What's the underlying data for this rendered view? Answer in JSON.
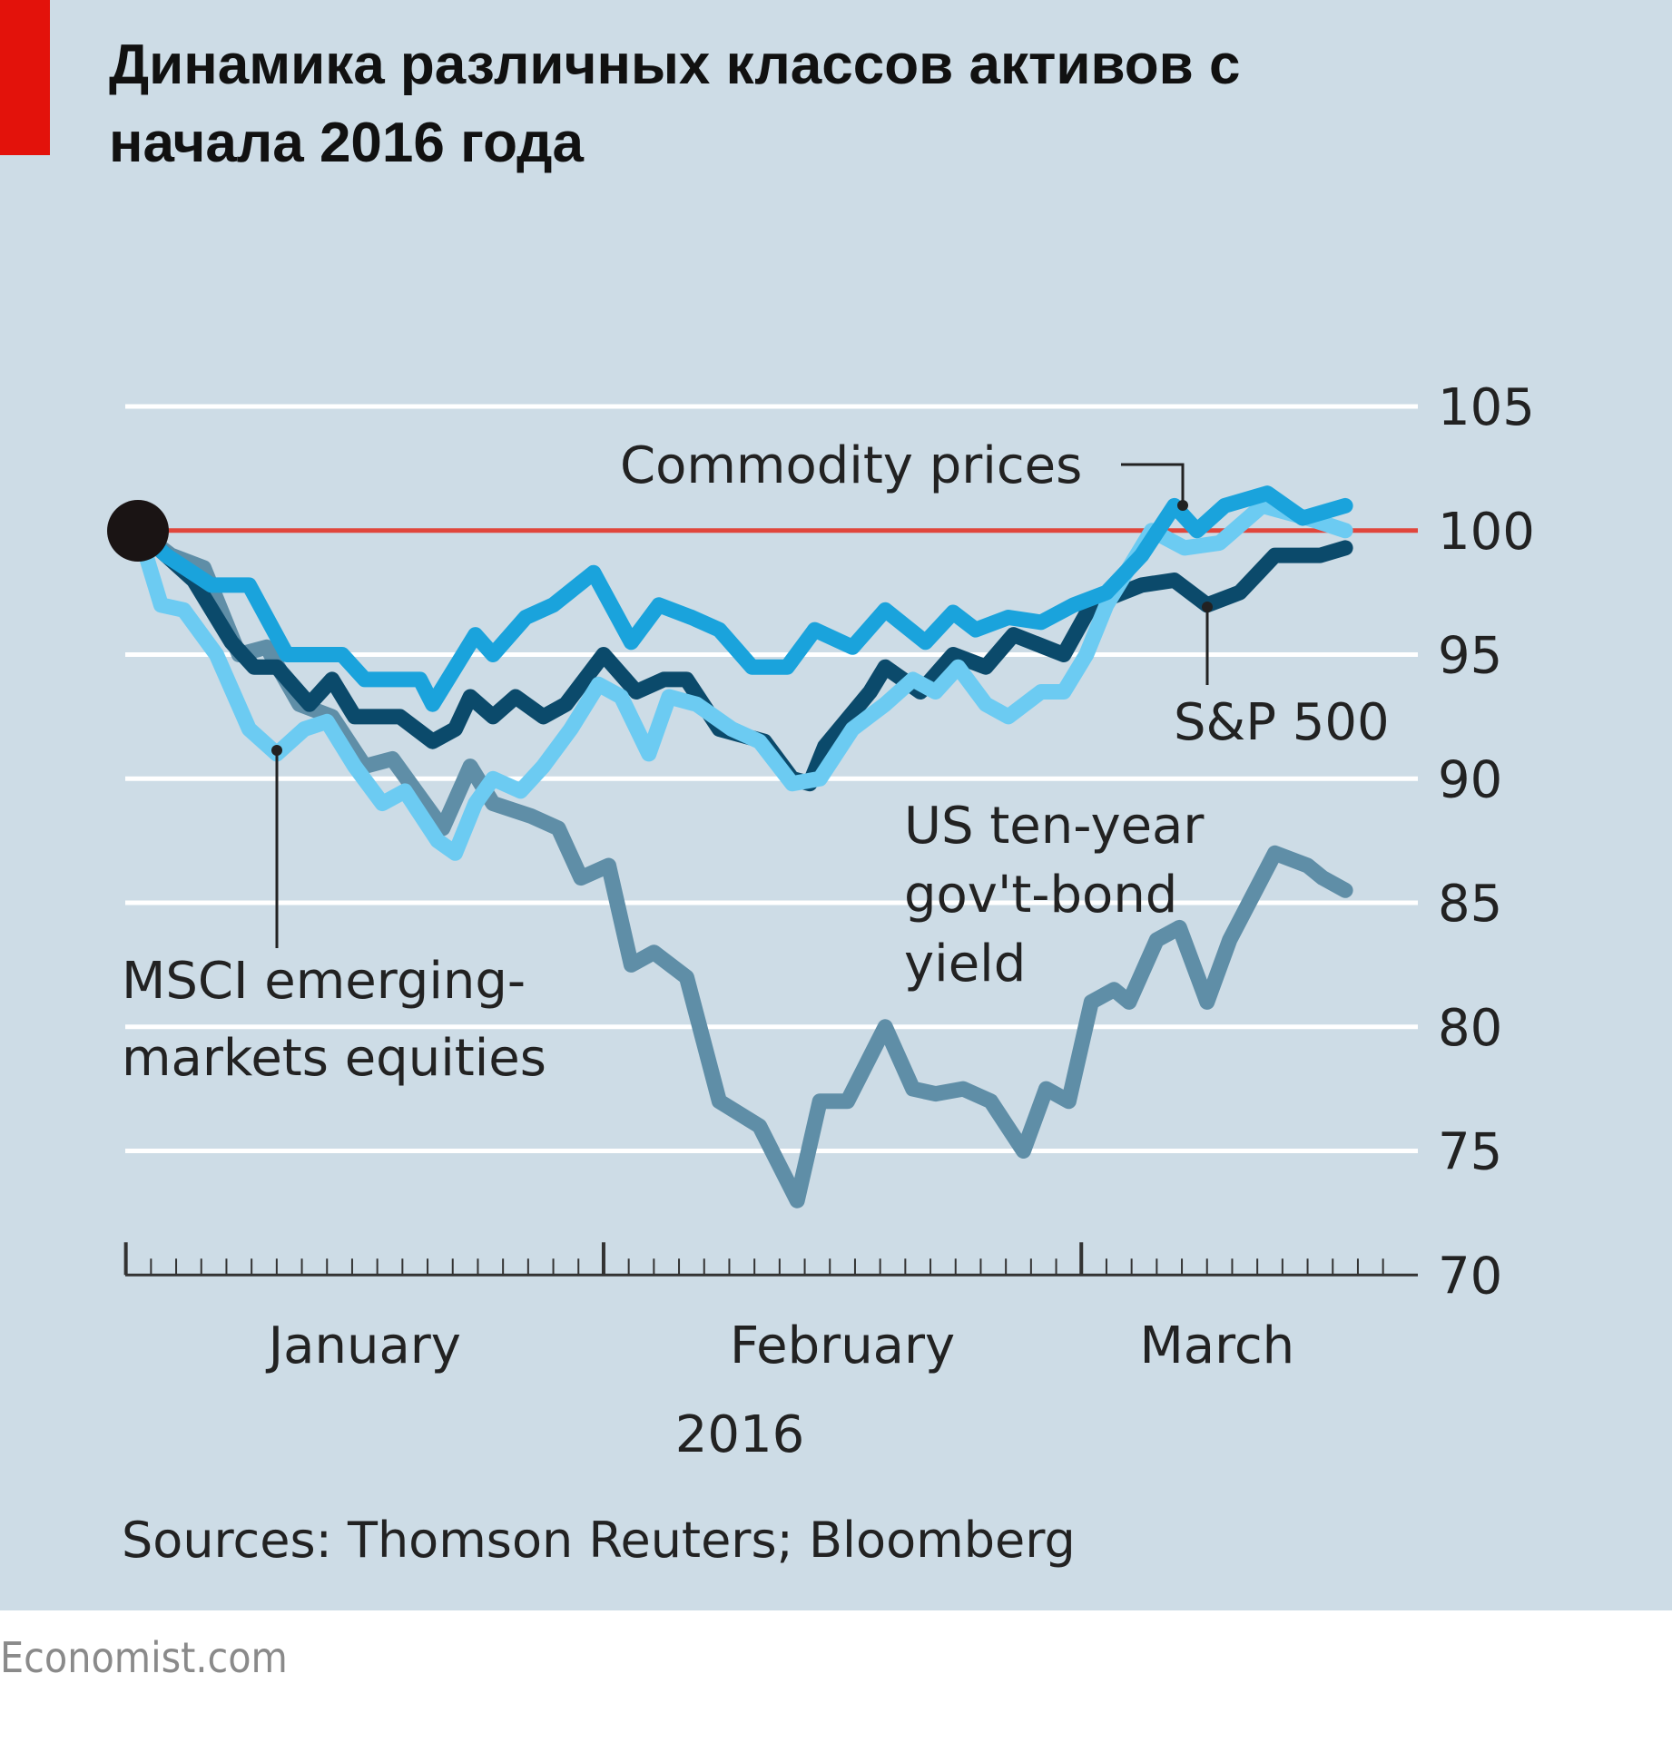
{
  "title_line1": "Динамика различных классов активов с",
  "title_line2": "начала 2016 года",
  "footer": "Economist.com",
  "chart_data": {
    "type": "line",
    "title": "Динамика различных классов активов с начала 2016 года",
    "xlabel": "2016",
    "ylabel": "",
    "ylim": [
      70,
      105
    ],
    "yticks": [
      "105",
      "100",
      "95",
      "90",
      "85",
      "80",
      "75",
      "70"
    ],
    "ytick_values": [
      105,
      100,
      95,
      90,
      85,
      80,
      75,
      70
    ],
    "x_unit": "trading days since start of 2016",
    "xlim": [
      -0.5,
      49.5
    ],
    "month_labels": [
      {
        "label": "January",
        "start": -0.5,
        "end": 18.5
      },
      {
        "label": "February",
        "start": 18.5,
        "end": 37.5
      },
      {
        "label": "March",
        "start": 37.5,
        "end": 49.5
      }
    ],
    "baseline": 100,
    "source": "Sources: Thomson Reuters; Bloomberg",
    "series": [
      {
        "name": "Commodity prices",
        "color": "#1aa3dc",
        "points": [
          [
            0,
            100
          ],
          [
            1.1,
            99
          ],
          [
            2.9,
            97.8
          ],
          [
            4.4,
            97.8
          ],
          [
            5.9,
            95
          ],
          [
            8.1,
            95
          ],
          [
            9,
            94
          ],
          [
            11.2,
            94
          ],
          [
            11.7,
            93
          ],
          [
            13.4,
            95.8
          ],
          [
            14.1,
            95
          ],
          [
            15.4,
            96.5
          ],
          [
            16.5,
            97
          ],
          [
            18.1,
            98.3
          ],
          [
            19.6,
            95.5
          ],
          [
            20.7,
            97
          ],
          [
            22,
            96.5
          ],
          [
            23.1,
            96
          ],
          [
            24.4,
            94.5
          ],
          [
            25.8,
            94.5
          ],
          [
            26.9,
            96
          ],
          [
            28.4,
            95.3
          ],
          [
            29.7,
            96.8
          ],
          [
            31.3,
            95.5
          ],
          [
            32.4,
            96.7
          ],
          [
            33.3,
            96
          ],
          [
            34.6,
            96.5
          ],
          [
            35.9,
            96.3
          ],
          [
            37.2,
            97
          ],
          [
            38.5,
            97.5
          ],
          [
            39.9,
            99
          ],
          [
            41.2,
            101
          ],
          [
            42.1,
            100
          ],
          [
            43.2,
            101
          ],
          [
            44.9,
            101.5
          ],
          [
            46.3,
            100.5
          ],
          [
            48,
            101
          ]
        ]
      },
      {
        "name": "S&P 500",
        "color": "#0b4a6b",
        "points": [
          [
            0,
            100
          ],
          [
            1.1,
            99
          ],
          [
            2.2,
            98
          ],
          [
            3.7,
            95.5
          ],
          [
            4.6,
            94.5
          ],
          [
            5.5,
            94.5
          ],
          [
            6.8,
            93
          ],
          [
            7.7,
            94
          ],
          [
            8.6,
            92.5
          ],
          [
            10.4,
            92.5
          ],
          [
            11.7,
            91.5
          ],
          [
            12.6,
            92
          ],
          [
            13.2,
            93.3
          ],
          [
            14.1,
            92.5
          ],
          [
            15,
            93.3
          ],
          [
            16.1,
            92.5
          ],
          [
            17,
            93
          ],
          [
            18.5,
            95
          ],
          [
            19.8,
            93.5
          ],
          [
            20.9,
            94
          ],
          [
            21.8,
            94
          ],
          [
            23.1,
            92
          ],
          [
            24.9,
            91.5
          ],
          [
            26,
            90
          ],
          [
            26.7,
            89.8
          ],
          [
            27.3,
            91.3
          ],
          [
            29.1,
            93.5
          ],
          [
            29.7,
            94.5
          ],
          [
            31.1,
            93.5
          ],
          [
            32.4,
            95
          ],
          [
            33.7,
            94.5
          ],
          [
            34.8,
            95.8
          ],
          [
            36.8,
            95
          ],
          [
            37.9,
            97
          ],
          [
            39.9,
            97.8
          ],
          [
            41.2,
            98
          ],
          [
            42.5,
            97
          ],
          [
            43.8,
            97.5
          ],
          [
            45.2,
            99
          ],
          [
            47,
            99
          ],
          [
            48,
            99.3
          ]
        ]
      },
      {
        "name": "MSCI emerging-markets equities",
        "color": "#6ccbf2",
        "points": [
          [
            0,
            100
          ],
          [
            0.9,
            97
          ],
          [
            1.8,
            96.8
          ],
          [
            3.1,
            95
          ],
          [
            4.4,
            92
          ],
          [
            5.5,
            91
          ],
          [
            6.6,
            92
          ],
          [
            7.5,
            92.3
          ],
          [
            8.6,
            90.5
          ],
          [
            9.7,
            89
          ],
          [
            10.6,
            89.5
          ],
          [
            11.9,
            87.5
          ],
          [
            12.6,
            87
          ],
          [
            13.4,
            89
          ],
          [
            14.1,
            90
          ],
          [
            15.2,
            89.5
          ],
          [
            16.1,
            90.5
          ],
          [
            17.2,
            92
          ],
          [
            18.3,
            93.8
          ],
          [
            19.2,
            93.3
          ],
          [
            20.3,
            91
          ],
          [
            21.1,
            93.3
          ],
          [
            22.2,
            93
          ],
          [
            23.6,
            92
          ],
          [
            24.7,
            91.5
          ],
          [
            26,
            89.8
          ],
          [
            27.1,
            90
          ],
          [
            28.4,
            92
          ],
          [
            29.7,
            93
          ],
          [
            30.8,
            94
          ],
          [
            31.7,
            93.5
          ],
          [
            32.6,
            94.5
          ],
          [
            33.7,
            93
          ],
          [
            34.6,
            92.5
          ],
          [
            35.9,
            93.5
          ],
          [
            36.8,
            93.5
          ],
          [
            37.7,
            95
          ],
          [
            38.5,
            97
          ],
          [
            40.3,
            100
          ],
          [
            41.6,
            99.3
          ],
          [
            43,
            99.5
          ],
          [
            44.7,
            101
          ],
          [
            46.5,
            100.5
          ],
          [
            48,
            100
          ]
        ]
      },
      {
        "name": "US ten-year gov't-bond yield",
        "color": "#5f8ea7",
        "points": [
          [
            0,
            100
          ],
          [
            1.3,
            99
          ],
          [
            2.6,
            98.5
          ],
          [
            4,
            95
          ],
          [
            5.1,
            95.3
          ],
          [
            6.4,
            93
          ],
          [
            7.7,
            92.5
          ],
          [
            9,
            90.5
          ],
          [
            10.1,
            90.8
          ],
          [
            12.1,
            88
          ],
          [
            13.2,
            90.5
          ],
          [
            14.1,
            89
          ],
          [
            15.6,
            88.5
          ],
          [
            16.7,
            88
          ],
          [
            17.6,
            86
          ],
          [
            18.7,
            86.5
          ],
          [
            19.6,
            82.5
          ],
          [
            20.5,
            83
          ],
          [
            21.8,
            82
          ],
          [
            23.1,
            77
          ],
          [
            24.7,
            76
          ],
          [
            26.2,
            73
          ],
          [
            27.1,
            77
          ],
          [
            28.2,
            77
          ],
          [
            29.7,
            80
          ],
          [
            30.8,
            77.5
          ],
          [
            31.7,
            77.3
          ],
          [
            32.8,
            77.5
          ],
          [
            33.9,
            77
          ],
          [
            35.2,
            75
          ],
          [
            36.1,
            77.5
          ],
          [
            37,
            77
          ],
          [
            37.9,
            81
          ],
          [
            38.8,
            81.5
          ],
          [
            39.4,
            81
          ],
          [
            40.5,
            83.5
          ],
          [
            41.4,
            84
          ],
          [
            42.5,
            81
          ],
          [
            43.4,
            83.5
          ],
          [
            45.2,
            87
          ],
          [
            46.5,
            86.5
          ],
          [
            47.1,
            86
          ],
          [
            48,
            85.5
          ]
        ]
      }
    ],
    "annotations": {
      "commodity": "Commodity prices",
      "sp500": "S&P 500",
      "msci_line1": "MSCI emerging-",
      "msci_line2": "markets equities",
      "bond_line1": "US ten-year",
      "bond_line2": "gov't-bond",
      "bond_line3": "yield"
    }
  }
}
